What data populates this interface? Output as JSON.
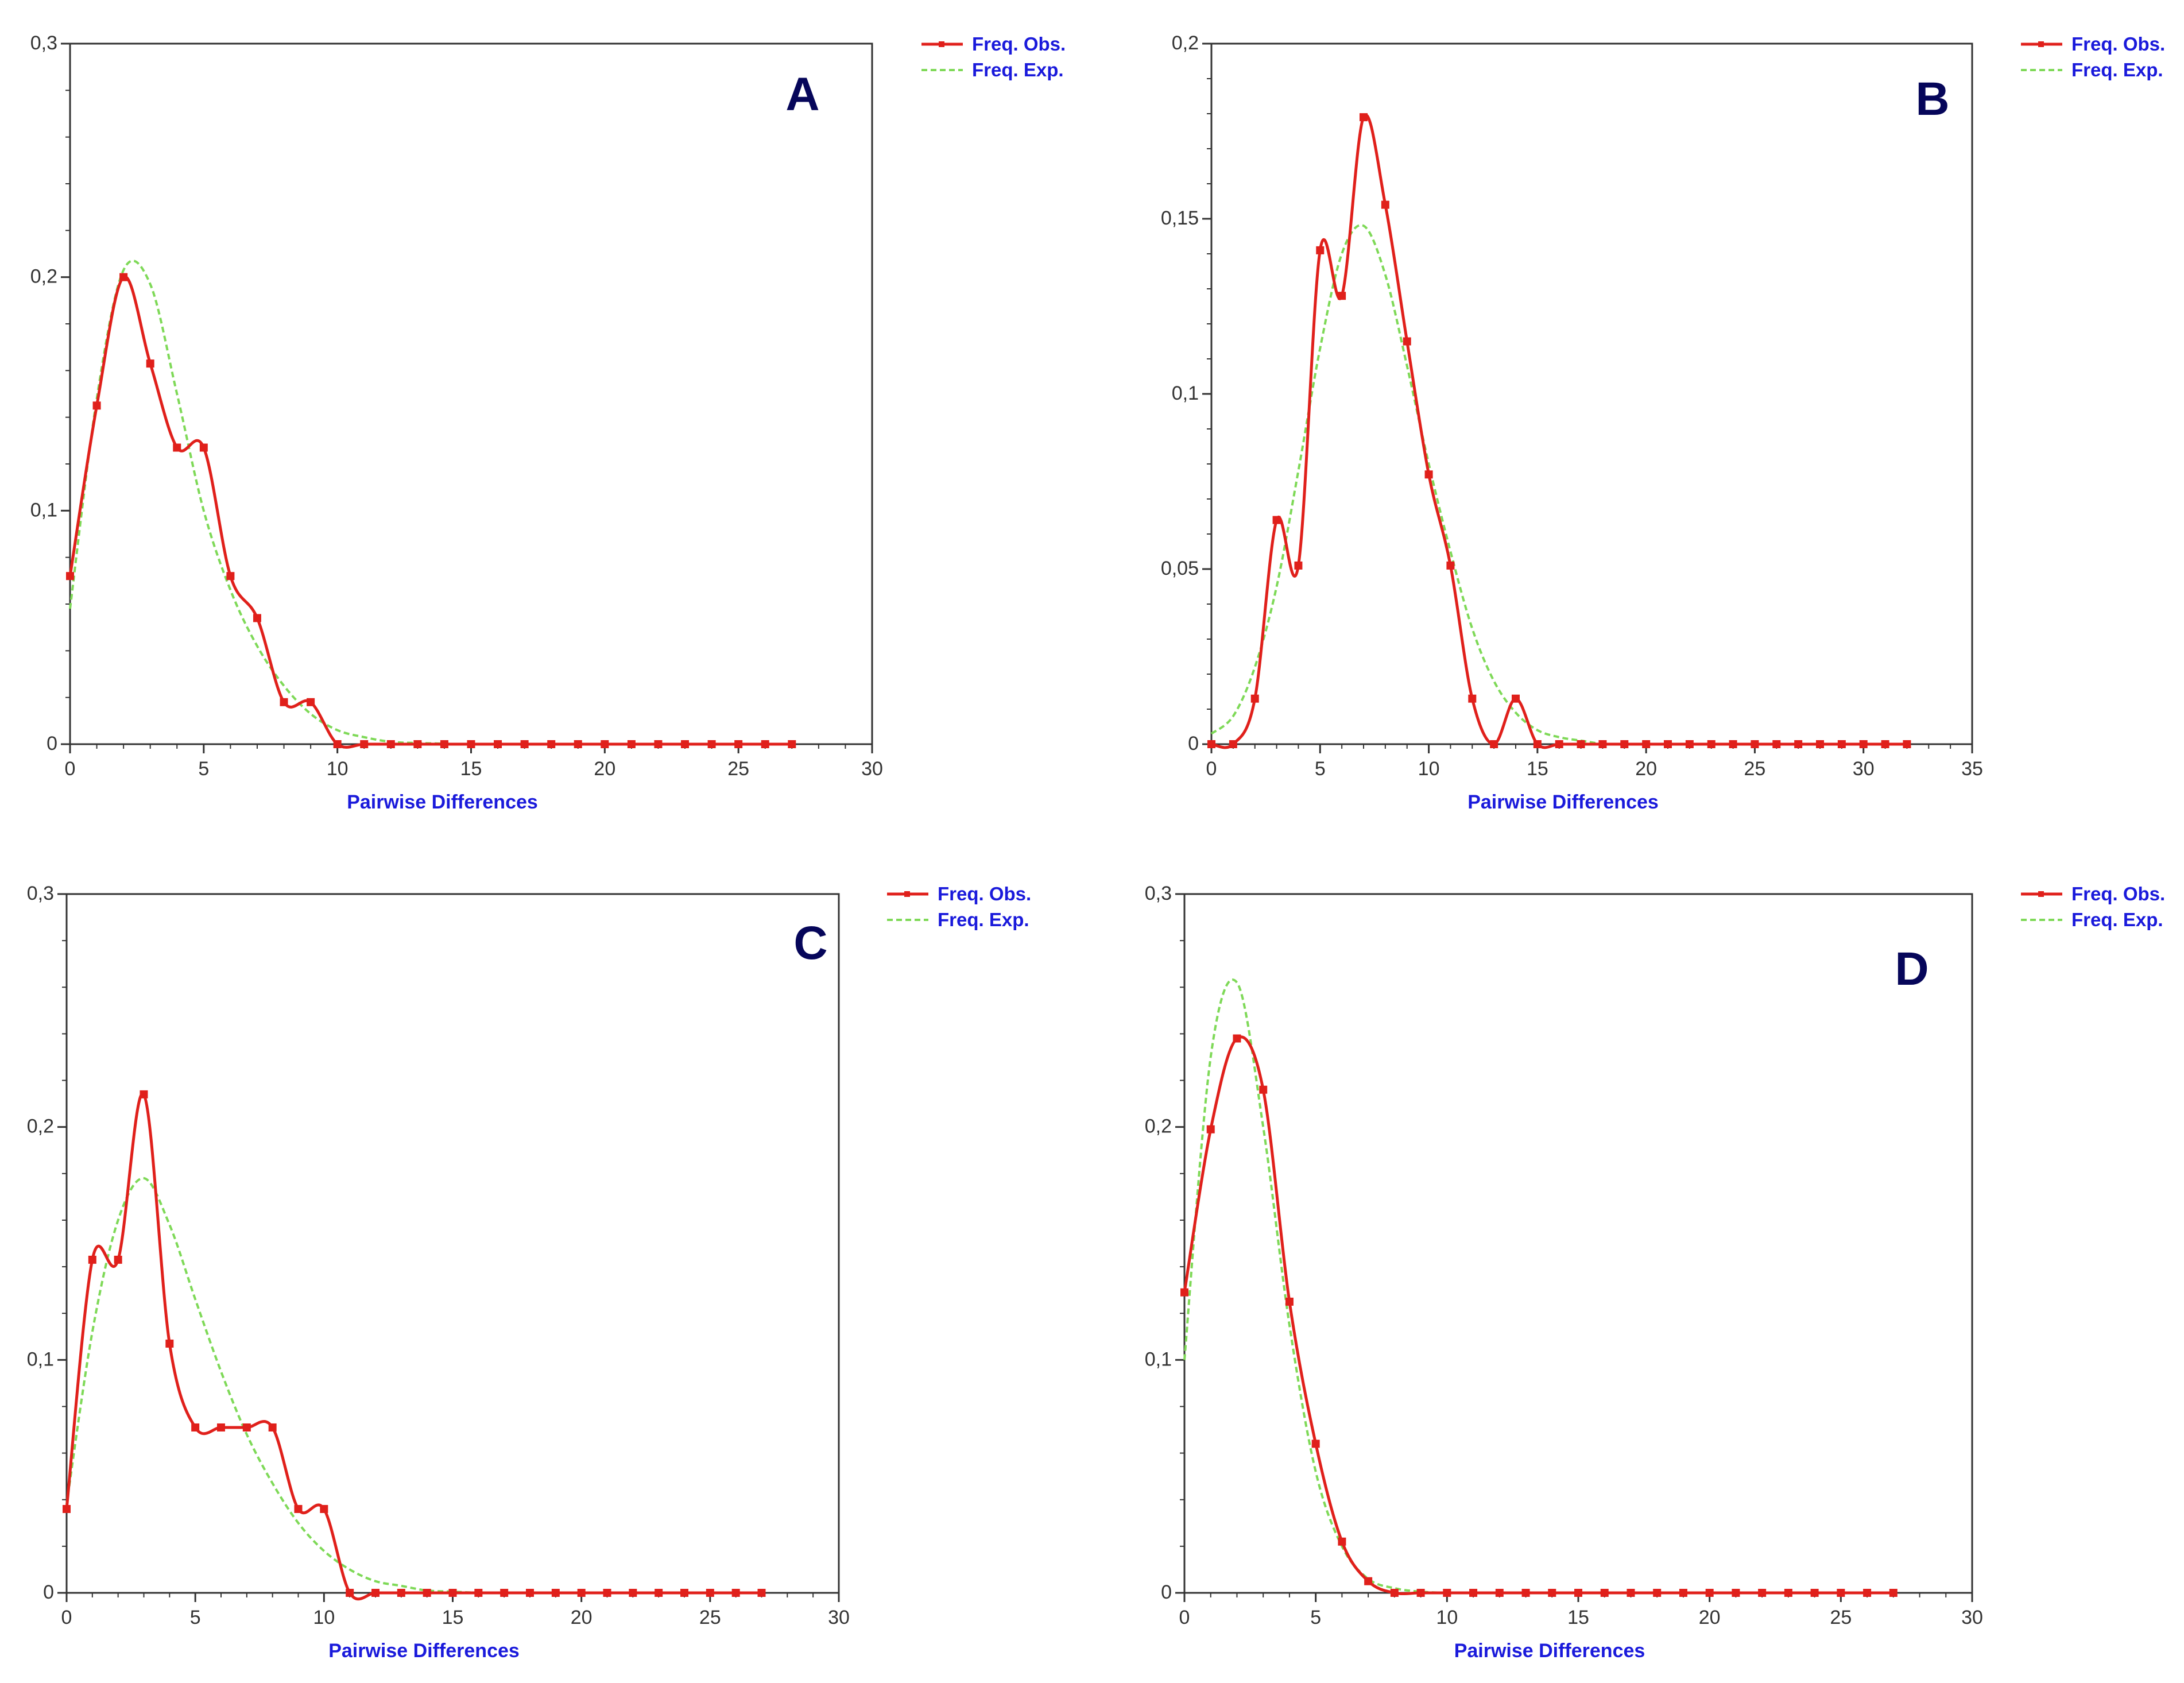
{
  "chart_data": [
    {
      "type": "line",
      "panel_label": "A",
      "xlabel": "Pairwise Differences",
      "ylabel": "",
      "xlim": [
        0,
        30
      ],
      "ylim": [
        0,
        0.3
      ],
      "x_ticks": [
        "0",
        "5",
        "10",
        "15",
        "20",
        "25",
        "30"
      ],
      "y_ticks": [
        "0",
        "0,1",
        "0,2",
        "0,3"
      ],
      "grid": false,
      "legend_position": "top-right",
      "series": [
        {
          "name": "Freq. Obs.",
          "color": "#e0201b",
          "style": "solid",
          "markers": true,
          "x": [
            0,
            1,
            2,
            3,
            4,
            5,
            6,
            7,
            8,
            9,
            10,
            11,
            12,
            13,
            14,
            15,
            16,
            17,
            18,
            19,
            20,
            21,
            22,
            23,
            24,
            25,
            26,
            27
          ],
          "y": [
            0.072,
            0.145,
            0.2,
            0.163,
            0.127,
            0.127,
            0.072,
            0.054,
            0.018,
            0.018,
            0,
            0,
            0,
            0,
            0,
            0,
            0,
            0,
            0,
            0,
            0,
            0,
            0,
            0,
            0,
            0,
            0,
            0
          ]
        },
        {
          "name": "Freq. Exp.",
          "color": "#7ed957",
          "style": "dashed",
          "markers": false,
          "x": [
            0,
            1,
            2,
            3,
            4,
            5,
            6,
            7,
            8,
            9,
            10,
            11,
            12,
            13,
            14,
            15
          ],
          "y": [
            0.058,
            0.148,
            0.203,
            0.197,
            0.15,
            0.1,
            0.066,
            0.042,
            0.025,
            0.013,
            0.006,
            0.003,
            0.001,
            0.0005,
            0.0002,
            0
          ]
        }
      ]
    },
    {
      "type": "line",
      "panel_label": "B",
      "xlabel": "Pairwise Differences",
      "ylabel": "",
      "xlim": [
        0,
        35
      ],
      "ylim": [
        0,
        0.2
      ],
      "x_ticks": [
        "0",
        "5",
        "10",
        "15",
        "20",
        "25",
        "30",
        "35"
      ],
      "y_ticks": [
        "0",
        "0,05",
        "0,1",
        "0,15",
        "0,2"
      ],
      "grid": false,
      "legend_position": "top-right",
      "series": [
        {
          "name": "Freq. Obs.",
          "color": "#e0201b",
          "style": "solid",
          "markers": true,
          "x": [
            0,
            1,
            2,
            3,
            4,
            5,
            6,
            7,
            8,
            9,
            10,
            11,
            12,
            13,
            14,
            15,
            16,
            17,
            18,
            19,
            20,
            21,
            22,
            23,
            24,
            25,
            26,
            27,
            28,
            29,
            30,
            31,
            32
          ],
          "y": [
            0,
            0,
            0.013,
            0.064,
            0.051,
            0.141,
            0.128,
            0.179,
            0.154,
            0.115,
            0.077,
            0.051,
            0.013,
            0,
            0.013,
            0,
            0,
            0,
            0,
            0,
            0,
            0,
            0,
            0,
            0,
            0,
            0,
            0,
            0,
            0,
            0,
            0,
            0
          ]
        },
        {
          "name": "Freq. Exp.",
          "color": "#7ed957",
          "style": "dashed",
          "markers": false,
          "x": [
            0,
            1,
            2,
            3,
            4,
            5,
            6,
            7,
            8,
            9,
            10,
            11,
            12,
            13,
            14,
            15,
            16,
            17,
            18
          ],
          "y": [
            0.003,
            0.008,
            0.022,
            0.045,
            0.078,
            0.113,
            0.14,
            0.148,
            0.134,
            0.108,
            0.08,
            0.055,
            0.033,
            0.018,
            0.009,
            0.004,
            0.002,
            0.001,
            0
          ]
        }
      ]
    },
    {
      "type": "line",
      "panel_label": "C",
      "xlabel": "Pairwise Differences",
      "ylabel": "",
      "xlim": [
        0,
        30
      ],
      "ylim": [
        0,
        0.3
      ],
      "x_ticks": [
        "0",
        "5",
        "10",
        "15",
        "20",
        "25",
        "30"
      ],
      "y_ticks": [
        "0",
        "0,1",
        "0,2",
        "0,3"
      ],
      "grid": false,
      "legend_position": "top-right",
      "series": [
        {
          "name": "Freq. Obs.",
          "color": "#e0201b",
          "style": "solid",
          "markers": true,
          "x": [
            0,
            1,
            2,
            3,
            4,
            5,
            6,
            7,
            8,
            9,
            10,
            11,
            12,
            13,
            14,
            15,
            16,
            17,
            18,
            19,
            20,
            21,
            22,
            23,
            24,
            25,
            26,
            27
          ],
          "y": [
            0.036,
            0.143,
            0.143,
            0.214,
            0.107,
            0.071,
            0.071,
            0.071,
            0.071,
            0.036,
            0.036,
            0,
            0,
            0,
            0,
            0,
            0,
            0,
            0,
            0,
            0,
            0,
            0,
            0,
            0,
            0,
            0,
            0
          ]
        },
        {
          "name": "Freq. Exp.",
          "color": "#7ed957",
          "style": "dashed",
          "markers": false,
          "x": [
            0,
            1,
            2,
            3,
            4,
            5,
            6,
            7,
            8,
            9,
            10,
            11,
            12,
            13,
            14,
            15,
            16
          ],
          "y": [
            0.038,
            0.112,
            0.16,
            0.178,
            0.158,
            0.126,
            0.095,
            0.068,
            0.047,
            0.03,
            0.018,
            0.01,
            0.005,
            0.003,
            0.001,
            0.0005,
            0
          ]
        }
      ]
    },
    {
      "type": "line",
      "panel_label": "D",
      "xlabel": "Pairwise Differences",
      "ylabel": "",
      "xlim": [
        0,
        30
      ],
      "ylim": [
        0,
        0.3
      ],
      "x_ticks": [
        "0",
        "5",
        "10",
        "15",
        "20",
        "25",
        "30"
      ],
      "y_ticks": [
        "0",
        "0,1",
        "0,2",
        "0,3"
      ],
      "grid": false,
      "legend_position": "top-right",
      "series": [
        {
          "name": "Freq. Obs.",
          "color": "#e0201b",
          "style": "solid",
          "markers": true,
          "x": [
            0,
            1,
            2,
            3,
            4,
            5,
            6,
            7,
            8,
            9,
            10,
            11,
            12,
            13,
            14,
            15,
            16,
            17,
            18,
            19,
            20,
            21,
            22,
            23,
            24,
            25,
            26,
            27
          ],
          "y": [
            0.129,
            0.199,
            0.238,
            0.216,
            0.125,
            0.064,
            0.022,
            0.005,
            0,
            0,
            0,
            0,
            0,
            0,
            0,
            0,
            0,
            0,
            0,
            0,
            0,
            0,
            0,
            0,
            0,
            0,
            0,
            0
          ]
        },
        {
          "name": "Freq. Exp.",
          "color": "#7ed957",
          "style": "dashed",
          "markers": false,
          "x": [
            0,
            1,
            2,
            3,
            4,
            5,
            6,
            7,
            8,
            9,
            10
          ],
          "y": [
            0.1,
            0.23,
            0.262,
            0.2,
            0.115,
            0.052,
            0.02,
            0.006,
            0.002,
            0.0005,
            0
          ]
        }
      ]
    }
  ]
}
